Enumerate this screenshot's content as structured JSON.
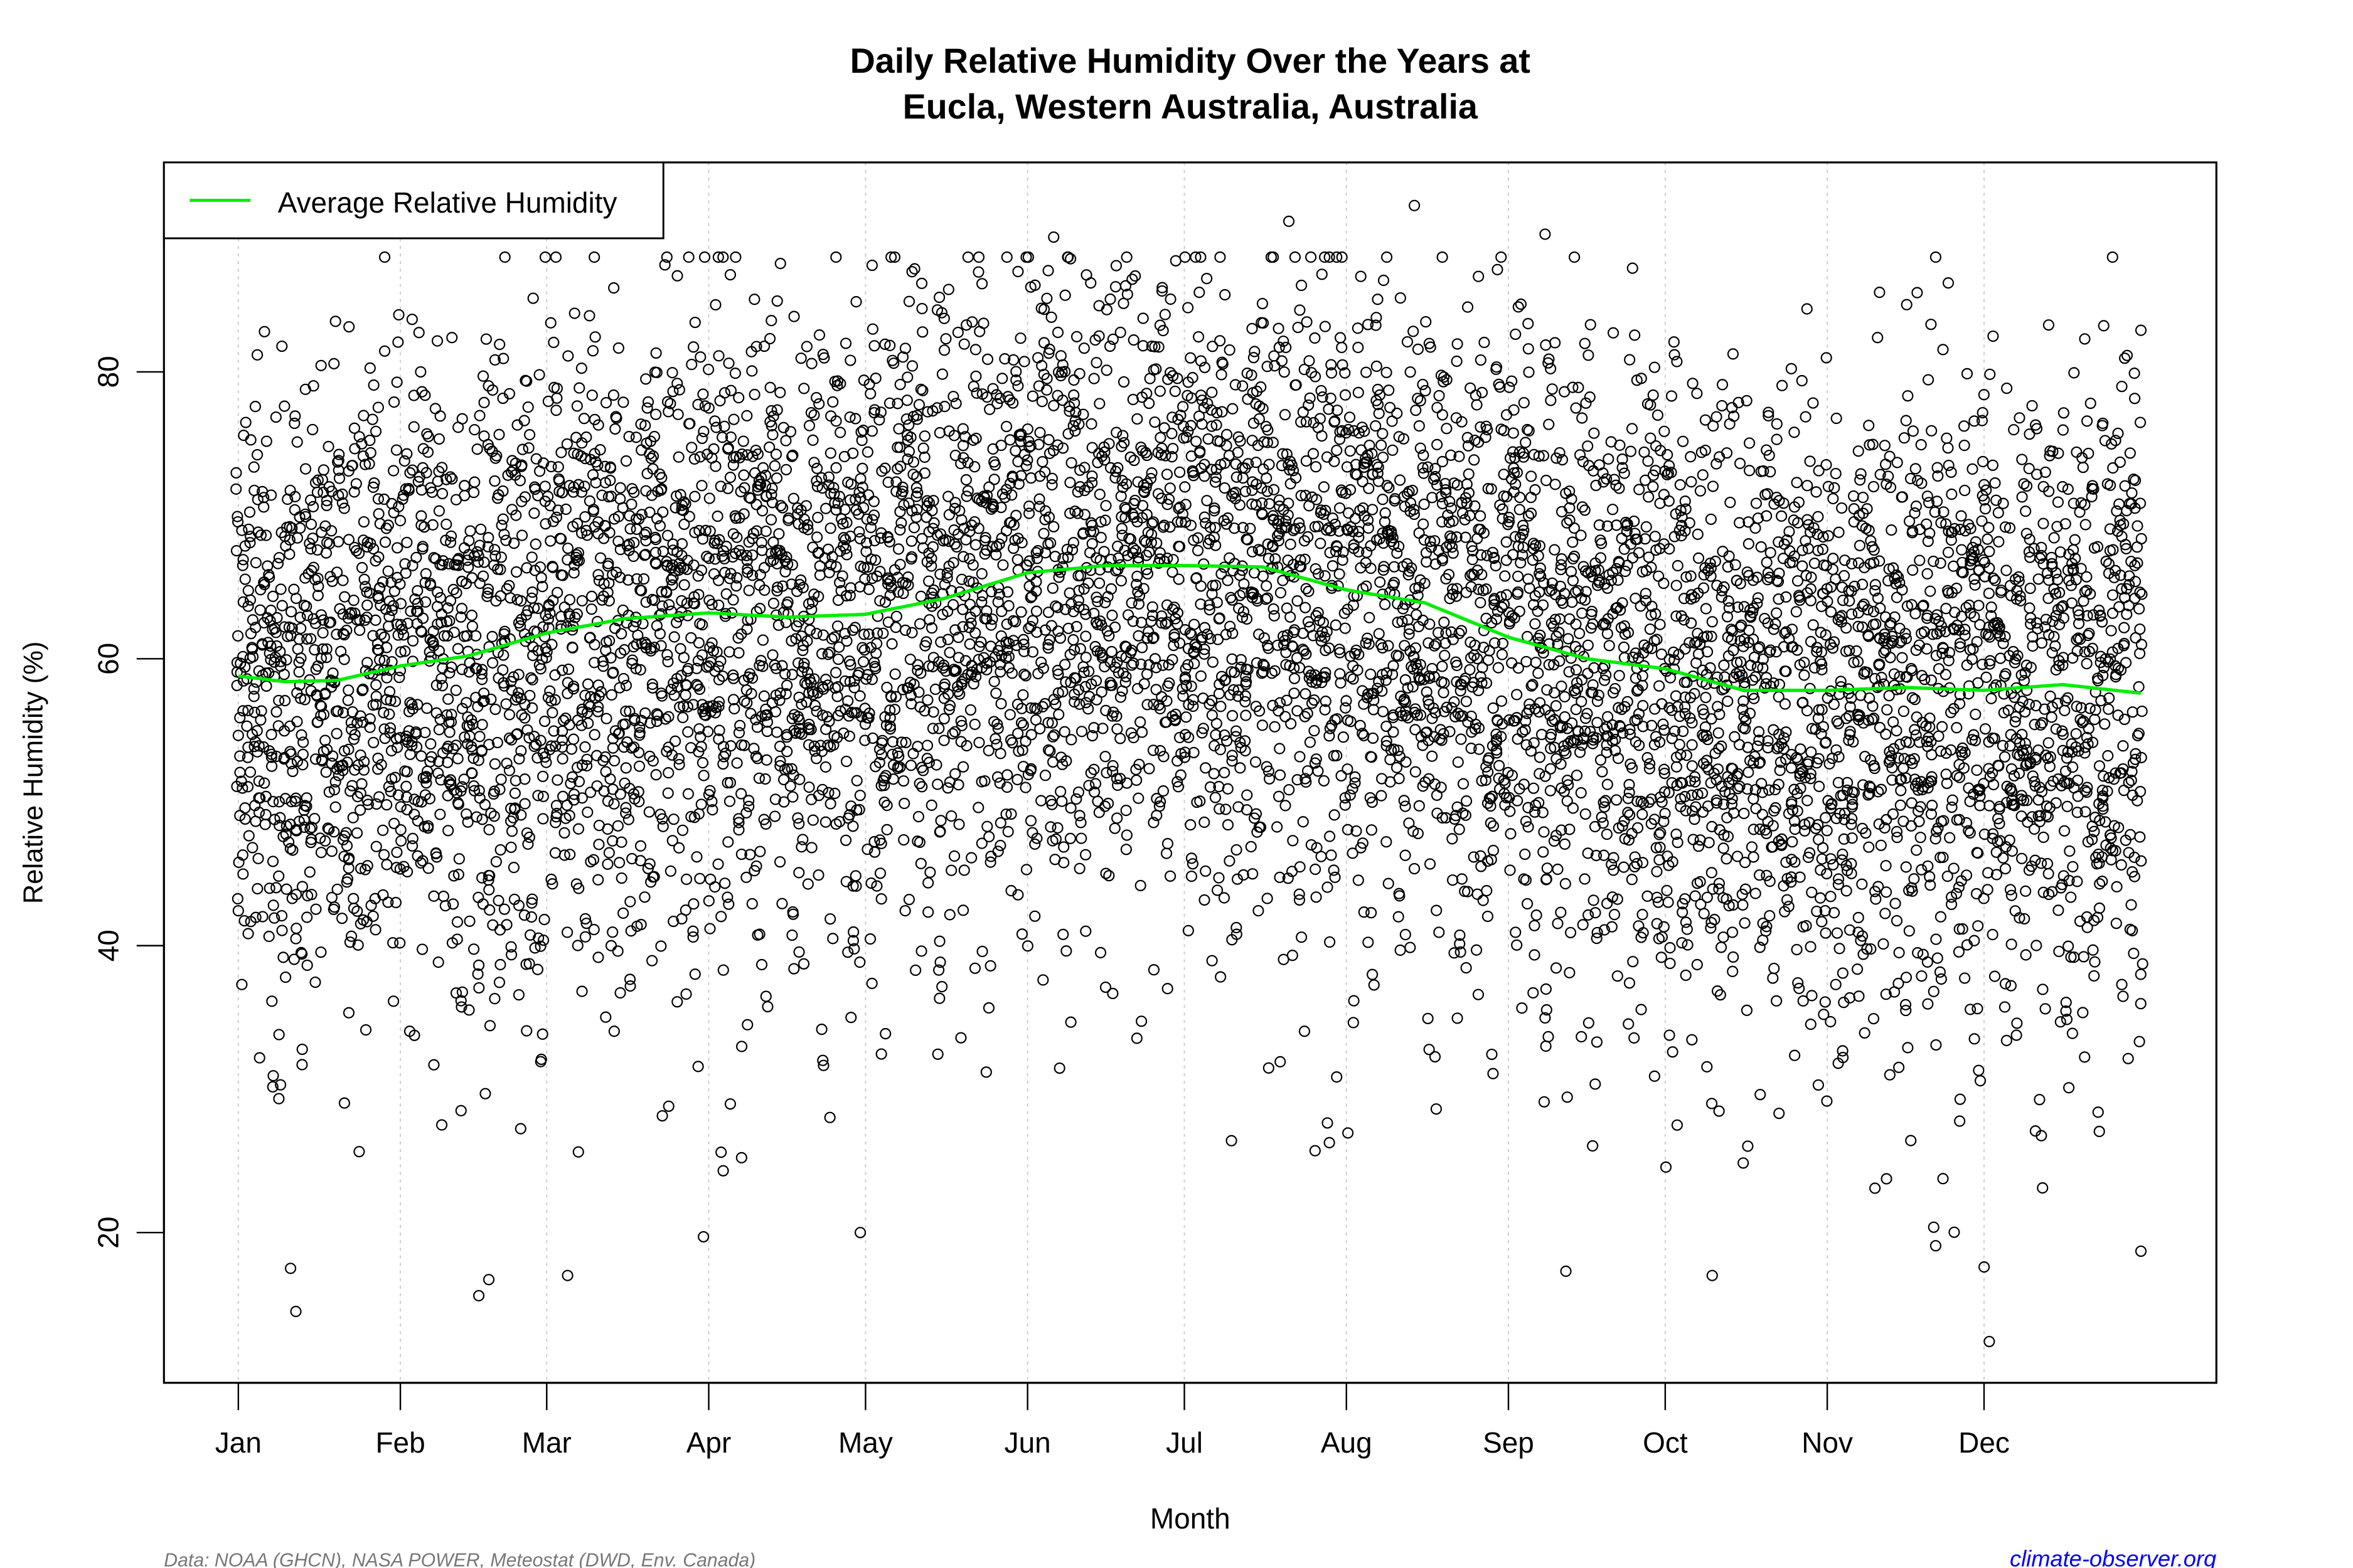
{
  "chart_data": {
    "type": "scatter",
    "title_line1": "Daily Relative Humidity Over the Years at",
    "title_line2": "Eucla, Western Australia, Australia",
    "xlabel": "Month",
    "ylabel": "Relative Humidity  (%)",
    "ylim": [
      9.5,
      94.6
    ],
    "yticks": [
      20,
      40,
      60,
      80
    ],
    "xticks": [
      {
        "label": "Jan",
        "day": 1
      },
      {
        "label": "Feb",
        "day": 32
      },
      {
        "label": "Mar",
        "day": 60
      },
      {
        "label": "Apr",
        "day": 91
      },
      {
        "label": "May",
        "day": 121
      },
      {
        "label": "Jun",
        "day": 152
      },
      {
        "label": "Jul",
        "day": 182
      },
      {
        "label": "Aug",
        "day": 213
      },
      {
        "label": "Sep",
        "day": 244
      },
      {
        "label": "Oct",
        "day": 274
      },
      {
        "label": "Nov",
        "day": 305
      },
      {
        "label": "Dec",
        "day": 335
      }
    ],
    "xlim_days": [
      1,
      365
    ],
    "grid": "vertical dotted at month starts",
    "legend": {
      "position": "top-left",
      "label": "Average Relative Humidity",
      "color": "#00ee00"
    },
    "average_series": {
      "name": "Average Relative Humidity",
      "x_day": [
        1,
        10,
        20,
        32,
        45,
        60,
        75,
        91,
        106,
        121,
        136,
        152,
        167,
        182,
        197,
        213,
        228,
        244,
        259,
        274,
        289,
        305,
        320,
        335,
        350,
        365
      ],
      "y": [
        58.8,
        58.4,
        58.5,
        59.5,
        60.2,
        61.8,
        62.8,
        63.2,
        62.9,
        63.1,
        64.2,
        66.0,
        66.5,
        66.5,
        66.4,
        64.8,
        63.9,
        61.5,
        60.0,
        59.3,
        57.8,
        57.8,
        58.0,
        57.8,
        58.2,
        57.6
      ]
    },
    "scatter_color": "#000000",
    "notable_points": [
      {
        "day": 12,
        "y": 14.5
      },
      {
        "day": 47,
        "y": 15.6
      },
      {
        "day": 336,
        "y": 12.4
      },
      {
        "day": 64,
        "y": 17.0
      },
      {
        "day": 11,
        "y": 17.5
      },
      {
        "day": 255,
        "y": 17.3
      },
      {
        "day": 283,
        "y": 17.0
      },
      {
        "day": 335,
        "y": 17.6
      },
      {
        "day": 202,
        "y": 90.5
      },
      {
        "day": 226,
        "y": 91.6
      },
      {
        "day": 29,
        "y": 88.0
      },
      {
        "day": 251,
        "y": 89.6
      },
      {
        "day": 157,
        "y": 89.4
      },
      {
        "day": 85,
        "y": 86.7
      },
      {
        "day": 6,
        "y": 82.8
      },
      {
        "day": 365,
        "y": 82.9
      },
      {
        "day": 365,
        "y": 18.7
      },
      {
        "day": 120,
        "y": 20.0
      },
      {
        "day": 90,
        "y": 19.7
      },
      {
        "day": 191,
        "y": 26.4
      },
      {
        "day": 207,
        "y": 25.7
      }
    ]
  },
  "footer": {
    "source": "Data: NOAA (GHCN), NASA POWER, Meteostat (DWD, Env. Canada)",
    "site": "climate-observer.org",
    "site_color": "#0000ff"
  }
}
